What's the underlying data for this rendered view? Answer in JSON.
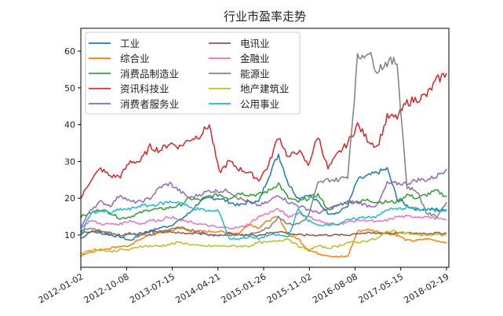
{
  "chart_data": {
    "type": "line",
    "title": "行业市盈率走势",
    "xlabel": "",
    "ylabel": "",
    "ylim": [
      1.5,
      67
    ],
    "yticks": [
      10,
      20,
      30,
      40,
      50,
      60
    ],
    "xticks": [
      "2012-01-02",
      "2012-10-08",
      "2013-07-15",
      "2014-04-21",
      "2015-01-26",
      "2015-11-02",
      "2016-08-08",
      "2017-05-15",
      "2018-02-19"
    ],
    "grid": false,
    "legend_position": "upper left",
    "legend_columns": 2,
    "x": [
      "2012-01",
      "2012-03",
      "2012-05",
      "2012-07",
      "2012-09",
      "2012-11",
      "2013-01",
      "2013-03",
      "2013-05",
      "2013-07",
      "2013-09",
      "2013-11",
      "2014-01",
      "2014-03",
      "2014-05",
      "2014-07",
      "2014-09",
      "2014-11",
      "2015-01",
      "2015-03",
      "2015-05",
      "2015-07",
      "2015-09",
      "2015-11",
      "2016-01",
      "2016-03",
      "2016-05",
      "2016-07",
      "2016-09",
      "2016-11",
      "2017-01",
      "2017-03",
      "2017-05",
      "2017-07",
      "2017-09",
      "2017-11",
      "2018-01",
      "2018-02"
    ],
    "series": [
      {
        "name": "工业",
        "color": "#1f77b4",
        "values": [
          9,
          11,
          10.5,
          10,
          9.5,
          8.5,
          10,
          11,
          12,
          12.5,
          14,
          16,
          19,
          20,
          20,
          19,
          18,
          19,
          19,
          26,
          32,
          24,
          20,
          21,
          19,
          16,
          16,
          18,
          25,
          26,
          27,
          28,
          20,
          18,
          17,
          17,
          17,
          16.5
        ]
      },
      {
        "name": "综合业",
        "color": "#ff7f0e",
        "values": [
          4.5,
          5.5,
          6,
          6.5,
          7,
          7,
          9,
          10,
          10.5,
          11,
          12,
          11,
          11,
          11,
          11,
          10.5,
          10.5,
          13,
          12,
          14,
          15,
          10,
          9,
          6,
          5,
          4.5,
          4,
          4.2,
          11,
          11.5,
          11,
          10.5,
          10,
          8.5,
          8.5,
          9,
          8.5,
          8
        ]
      },
      {
        "name": "消费品制造业",
        "color": "#2ca02c",
        "values": [
          15,
          16,
          17,
          16,
          14.5,
          15,
          16,
          17,
          17,
          17.5,
          18,
          20,
          19.5,
          20.5,
          21,
          20,
          21.5,
          21,
          21,
          22,
          24,
          20,
          19,
          20,
          21,
          17,
          18,
          19,
          19,
          19.5,
          19,
          19,
          19,
          21,
          20,
          21,
          22,
          20.5
        ]
      },
      {
        "name": "资讯科技业",
        "color": "#d62728",
        "values": [
          20,
          25,
          28,
          26,
          26,
          30,
          30,
          34,
          33,
          35,
          34,
          36,
          37,
          40,
          27,
          30,
          28,
          27,
          25,
          29,
          37,
          31,
          33,
          29,
          37,
          28,
          32,
          35,
          40,
          36,
          34,
          42,
          42,
          46,
          47,
          48,
          52,
          54
        ]
      },
      {
        "name": "消费者服务业",
        "color": "#9467bd",
        "values": [
          12,
          17,
          19,
          18,
          21,
          19,
          19,
          20,
          23,
          24,
          22,
          20,
          21,
          22,
          22,
          22,
          20,
          19,
          18,
          19,
          21,
          19,
          18,
          17,
          16,
          17,
          18,
          19,
          19,
          18,
          18,
          24,
          24,
          24,
          25,
          25,
          26,
          28
        ]
      },
      {
        "name": "电讯业",
        "color": "#8c564b",
        "values": [
          10.5,
          11,
          11,
          10.5,
          10,
          10,
          10.5,
          11,
          11,
          11,
          10.5,
          10.5,
          10.5,
          10,
          10,
          10.5,
          10,
          10,
          10,
          10.5,
          11,
          10.5,
          10,
          10,
          10,
          10,
          10,
          10,
          10.5,
          10.5,
          10.5,
          10.5,
          10.5,
          10.5,
          10.5,
          10.5,
          10.5,
          10.5
        ]
      },
      {
        "name": "金融业",
        "color": "#e377c2",
        "values": [
          12,
          14,
          13,
          13,
          13,
          14,
          13,
          14,
          14,
          15,
          14,
          13.5,
          13,
          12.5,
          12,
          12,
          12,
          13,
          15,
          16,
          17,
          15,
          16,
          15,
          14,
          13,
          13,
          13.5,
          14,
          14,
          13.5,
          14,
          15,
          15,
          15,
          15,
          14.5,
          14
        ]
      },
      {
        "name": "能源业",
        "color": "#7f7f7f",
        "values": [
          11,
          12,
          11,
          10.5,
          10,
          10.5,
          10,
          10,
          11,
          11.5,
          12,
          11.5,
          11,
          10,
          10,
          10,
          10,
          10,
          11,
          12,
          15,
          13,
          13,
          15,
          24,
          25,
          25,
          26,
          58,
          60,
          55,
          57,
          57,
          23,
          22,
          16,
          15,
          19
        ]
      },
      {
        "name": "地产建筑业",
        "color": "#bcbd22",
        "values": [
          5,
          6,
          6,
          5.5,
          6,
          6,
          7,
          7,
          7,
          7.5,
          8,
          7.5,
          7,
          7,
          7,
          7,
          7,
          7,
          8,
          8,
          8.5,
          9,
          7,
          6,
          7,
          6.5,
          7,
          8,
          8,
          8.5,
          9,
          11,
          11,
          10.5,
          10,
          10,
          10,
          10
        ]
      },
      {
        "name": "公用事业",
        "color": "#17becf",
        "values": [
          10,
          16,
          16.5,
          16,
          17,
          17,
          18,
          18,
          18.5,
          19,
          19,
          17.5,
          17,
          16.5,
          16.5,
          9,
          9,
          9.5,
          9,
          10,
          10,
          9.5,
          17,
          14,
          12.5,
          13,
          13,
          14,
          14.5,
          15,
          15,
          17,
          17,
          17.5,
          17,
          17,
          16.5,
          17
        ]
      }
    ]
  },
  "legend": {
    "col1": [
      "工业",
      "综合业",
      "消费品制造业",
      "资讯科技业",
      "消费者服务业"
    ],
    "col2": [
      "电讯业",
      "金融业",
      "能源业",
      "地产建筑业",
      "公用事业"
    ]
  }
}
